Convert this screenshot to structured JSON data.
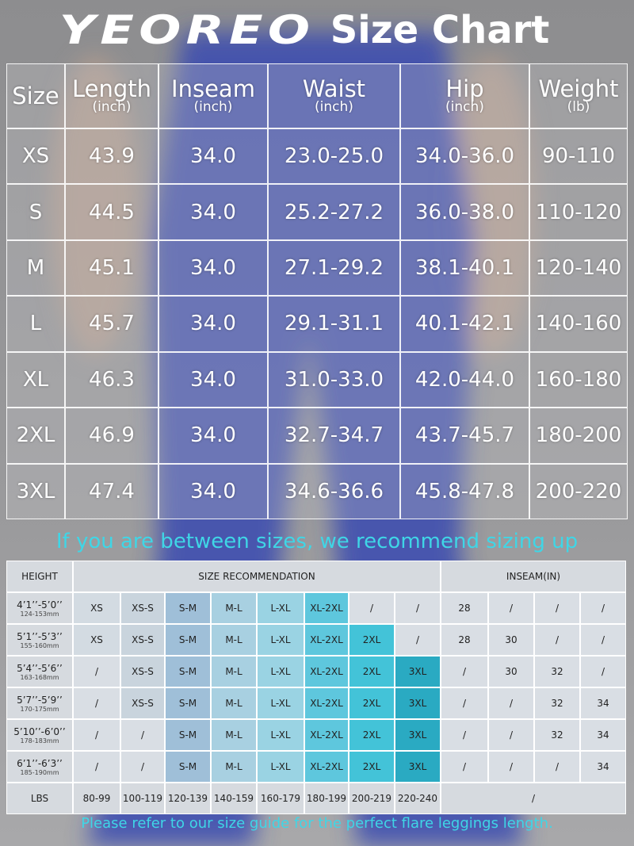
{
  "header": {
    "brand": "YEOREO",
    "title": "Size Chart"
  },
  "size_table": {
    "columns": [
      {
        "name": "Size"
      },
      {
        "name": "Length",
        "unit": "(inch)"
      },
      {
        "name": "Inseam",
        "unit": "(inch)"
      },
      {
        "name": "Waist",
        "unit": "(inch)"
      },
      {
        "name": "Hip",
        "unit": "(inch)"
      },
      {
        "name": "Weight",
        "unit": "(lb)"
      }
    ],
    "rows": [
      [
        "XS",
        "43.9",
        "34.0",
        "23.0-25.0",
        "34.0-36.0",
        "90-110"
      ],
      [
        "S",
        "44.5",
        "34.0",
        "25.2-27.2",
        "36.0-38.0",
        "110-120"
      ],
      [
        "M",
        "45.1",
        "34.0",
        "27.1-29.2",
        "38.1-40.1",
        "120-140"
      ],
      [
        "L",
        "45.7",
        "34.0",
        "29.1-31.1",
        "40.1-42.1",
        "140-160"
      ],
      [
        "XL",
        "46.3",
        "34.0",
        "31.0-33.0",
        "42.0-44.0",
        "160-180"
      ],
      [
        "2XL",
        "46.9",
        "34.0",
        "32.7-34.7",
        "43.7-45.7",
        "180-200"
      ],
      [
        "3XL",
        "47.4",
        "34.0",
        "34.6-36.6",
        "45.8-47.8",
        "200-220"
      ]
    ]
  },
  "note": "If you are between sizes, we recommend sizing up",
  "rec_table": {
    "headers": {
      "height": "HEIGHT",
      "size": "SIZE RECOMMENDATION",
      "inseam": "INSEAM(IN)"
    },
    "rows": [
      {
        "height": "4’1’’-5’0’’",
        "metric": "124-153mm",
        "sizes": [
          "XS",
          "XS-S",
          "S-M",
          "M-L",
          "L-XL",
          "XL-2XL",
          "/",
          "/"
        ],
        "inseam": [
          "28",
          "/",
          "/",
          "/"
        ]
      },
      {
        "height": "5’1’’-5’3’’",
        "metric": "155-160mm",
        "sizes": [
          "XS",
          "XS-S",
          "S-M",
          "M-L",
          "L-XL",
          "XL-2XL",
          "2XL",
          "/"
        ],
        "inseam": [
          "28",
          "30",
          "/",
          "/"
        ]
      },
      {
        "height": "5’4’’-5’6’’",
        "metric": "163-168mm",
        "sizes": [
          "/",
          "XS-S",
          "S-M",
          "M-L",
          "L-XL",
          "XL-2XL",
          "2XL",
          "3XL"
        ],
        "inseam": [
          "/",
          "30",
          "32",
          "/"
        ]
      },
      {
        "height": "5’7’’-5’9’’",
        "metric": "170-175mm",
        "sizes": [
          "/",
          "XS-S",
          "S-M",
          "M-L",
          "L-XL",
          "XL-2XL",
          "2XL",
          "3XL"
        ],
        "inseam": [
          "/",
          "/",
          "32",
          "34"
        ]
      },
      {
        "height": "5’10’’-6’0’’",
        "metric": "178-183mm",
        "sizes": [
          "/",
          "/",
          "S-M",
          "M-L",
          "L-XL",
          "XL-2XL",
          "2XL",
          "3XL"
        ],
        "inseam": [
          "/",
          "/",
          "32",
          "34"
        ]
      },
      {
        "height": "6’1’’-6’3’’",
        "metric": "185-190mm",
        "sizes": [
          "/",
          "/",
          "S-M",
          "M-L",
          "L-XL",
          "XL-2XL",
          "2XL",
          "3XL"
        ],
        "inseam": [
          "/",
          "/",
          "/",
          "34"
        ]
      }
    ],
    "lbs": {
      "label": "LBS",
      "values": [
        "80-99",
        "100-119",
        "120-139",
        "140-159",
        "160-179",
        "180-199",
        "200-219",
        "220-240"
      ],
      "inseam": "/"
    }
  },
  "footer": "Please refer to our size guide for the perfect flare leggings length."
}
